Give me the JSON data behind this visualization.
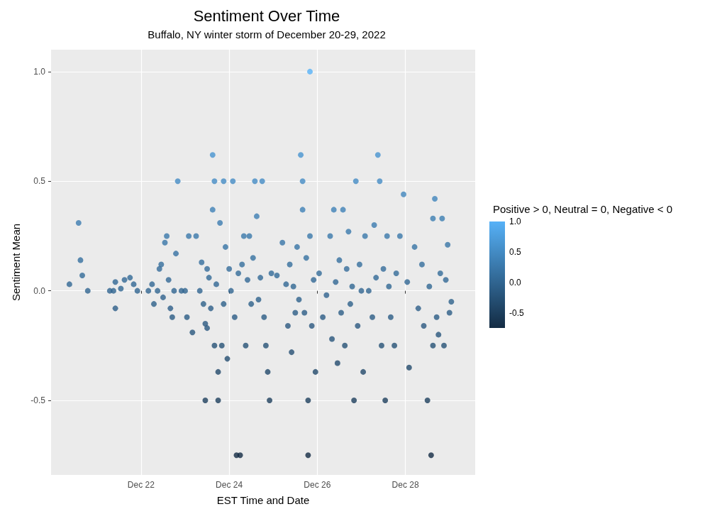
{
  "chart_data": {
    "type": "scatter",
    "title": "Sentiment Over Time",
    "subtitle": "Buffalo, NY winter storm of December 20-29, 2022",
    "xlabel": "EST Time and Date",
    "ylabel": "Sentiment Mean",
    "clabel": "Positive > 0, Neutral = 0, Negative < 0",
    "xlim": [
      "2022-12-19T23:00",
      "2022-12-29T14:00"
    ],
    "xticks": [
      {
        "value": "2022-12-22",
        "label": "Dec 22"
      },
      {
        "value": "2022-12-24",
        "label": "Dec 24"
      },
      {
        "value": "2022-12-26",
        "label": "Dec 26"
      },
      {
        "value": "2022-12-28",
        "label": "Dec 28"
      }
    ],
    "ylim": [
      -0.84,
      1.1
    ],
    "yticks": [
      {
        "value": -0.5,
        "label": "-0.5"
      },
      {
        "value": 0,
        "label": "0.0"
      },
      {
        "value": 0.5,
        "label": "0.5"
      },
      {
        "value": 1,
        "label": "1.0"
      }
    ],
    "clim": [
      -0.75,
      1
    ],
    "cticks": [
      {
        "value": -0.5,
        "label": "-0.5"
      },
      {
        "value": 0,
        "label": "0.0"
      },
      {
        "value": 0.5,
        "label": "0.5"
      },
      {
        "value": 1,
        "label": "1.0"
      }
    ],
    "grid": true,
    "marker": "circle",
    "x": [
      "2022-12-20T09:00",
      "2022-12-20T14:00",
      "2022-12-20T15:00",
      "2022-12-20T16:00",
      "2022-12-20T19:00",
      "2022-12-21T07:00",
      "2022-12-21T09:00",
      "2022-12-21T10:00",
      "2022-12-21T10:00",
      "2022-12-21T13:00",
      "2022-12-21T15:00",
      "2022-12-21T18:00",
      "2022-12-21T20:00",
      "2022-12-21T22:00",
      "2022-12-22T04:00",
      "2022-12-22T06:00",
      "2022-12-22T07:00",
      "2022-12-22T09:00",
      "2022-12-22T10:00",
      "2022-12-22T11:00",
      "2022-12-22T12:00",
      "2022-12-22T13:00",
      "2022-12-22T14:00",
      "2022-12-22T15:00",
      "2022-12-22T16:00",
      "2022-12-22T17:00",
      "2022-12-22T18:00",
      "2022-12-22T19:00",
      "2022-12-22T20:00",
      "2022-12-22T22:00",
      "2022-12-23T00:00",
      "2022-12-23T01:00",
      "2022-12-23T02:00",
      "2022-12-23T04:00",
      "2022-12-23T06:00",
      "2022-12-23T08:00",
      "2022-12-23T09:00",
      "2022-12-23T10:00",
      "2022-12-23T11:00",
      "2022-12-23T11:00",
      "2022-12-23T12:00",
      "2022-12-23T12:00",
      "2022-12-23T13:00",
      "2022-12-23T14:00",
      "2022-12-23T15:00",
      "2022-12-23T15:00",
      "2022-12-23T16:00",
      "2022-12-23T16:00",
      "2022-12-23T17:00",
      "2022-12-23T18:00",
      "2022-12-23T18:00",
      "2022-12-23T19:00",
      "2022-12-23T20:00",
      "2022-12-23T21:00",
      "2022-12-23T21:00",
      "2022-12-23T22:00",
      "2022-12-23T23:00",
      "2022-12-24T00:00",
      "2022-12-24T01:00",
      "2022-12-24T02:00",
      "2022-12-24T03:00",
      "2022-12-24T04:00",
      "2022-12-24T05:00",
      "2022-12-24T06:00",
      "2022-12-24T07:00",
      "2022-12-24T08:00",
      "2022-12-24T09:00",
      "2022-12-24T10:00",
      "2022-12-24T11:00",
      "2022-12-24T12:00",
      "2022-12-24T13:00",
      "2022-12-24T14:00",
      "2022-12-24T15:00",
      "2022-12-24T16:00",
      "2022-12-24T17:00",
      "2022-12-24T18:00",
      "2022-12-24T19:00",
      "2022-12-24T20:00",
      "2022-12-24T21:00",
      "2022-12-24T22:00",
      "2022-12-24T23:00",
      "2022-12-25T02:00",
      "2022-12-25T05:00",
      "2022-12-25T07:00",
      "2022-12-25T08:00",
      "2022-12-25T09:00",
      "2022-12-25T10:00",
      "2022-12-25T11:00",
      "2022-12-25T12:00",
      "2022-12-25T13:00",
      "2022-12-25T14:00",
      "2022-12-25T15:00",
      "2022-12-25T16:00",
      "2022-12-25T16:00",
      "2022-12-25T17:00",
      "2022-12-25T18:00",
      "2022-12-25T19:00",
      "2022-12-25T19:00",
      "2022-12-25T20:00",
      "2022-12-25T20:00",
      "2022-12-25T21:00",
      "2022-12-25T22:00",
      "2022-12-25T23:00",
      "2022-12-26T01:00",
      "2022-12-26T03:00",
      "2022-12-26T05:00",
      "2022-12-26T07:00",
      "2022-12-26T08:00",
      "2022-12-26T09:00",
      "2022-12-26T10:00",
      "2022-12-26T11:00",
      "2022-12-26T12:00",
      "2022-12-26T13:00",
      "2022-12-26T14:00",
      "2022-12-26T15:00",
      "2022-12-26T16:00",
      "2022-12-26T17:00",
      "2022-12-26T18:00",
      "2022-12-26T19:00",
      "2022-12-26T20:00",
      "2022-12-26T21:00",
      "2022-12-26T22:00",
      "2022-12-26T23:00",
      "2022-12-27T00:00",
      "2022-12-27T01:00",
      "2022-12-27T02:00",
      "2022-12-27T04:00",
      "2022-12-27T06:00",
      "2022-12-27T07:00",
      "2022-12-27T08:00",
      "2022-12-27T09:00",
      "2022-12-27T10:00",
      "2022-12-27T11:00",
      "2022-12-27T12:00",
      "2022-12-27T13:00",
      "2022-12-27T14:00",
      "2022-12-27T15:00",
      "2022-12-27T16:00",
      "2022-12-27T18:00",
      "2022-12-27T19:00",
      "2022-12-27T21:00",
      "2022-12-27T23:00",
      "2022-12-28T01:00",
      "2022-12-28T02:00",
      "2022-12-28T05:00",
      "2022-12-28T07:00",
      "2022-12-28T09:00",
      "2022-12-28T10:00",
      "2022-12-28T12:00",
      "2022-12-28T14:00",
      "2022-12-28T13:00",
      "2022-12-28T15:00",
      "2022-12-28T15:00",
      "2022-12-28T16:00",
      "2022-12-28T17:00",
      "2022-12-28T18:00",
      "2022-12-28T19:00",
      "2022-12-28T20:00",
      "2022-12-28T21:00",
      "2022-12-28T22:00",
      "2022-12-28T23:00",
      "2022-12-29T00:00",
      "2022-12-29T01:00"
    ],
    "values": [
      0.03,
      0.31,
      0.14,
      0.07,
      0,
      0,
      0,
      -0.08,
      0.04,
      0.01,
      0.05,
      0.06,
      0.03,
      0,
      0,
      0.03,
      -0.06,
      0,
      0.1,
      0.12,
      -0.03,
      0.22,
      0.25,
      0.05,
      -0.08,
      -0.12,
      0,
      0.17,
      0.5,
      0,
      0,
      -0.12,
      0.25,
      -0.19,
      0.25,
      0,
      0.13,
      -0.06,
      -0.15,
      -0.5,
      0.1,
      -0.17,
      0.06,
      -0.08,
      0.62,
      0.37,
      0.5,
      -0.25,
      0.03,
      -0.5,
      -0.37,
      0.31,
      -0.25,
      0.5,
      -0.06,
      0.2,
      -0.31,
      0.1,
      0,
      0.5,
      -0.12,
      -0.75,
      0.08,
      -0.75,
      0.12,
      0.25,
      -0.25,
      0.05,
      0.25,
      -0.06,
      0.15,
      0.5,
      0.34,
      -0.04,
      0.06,
      0.5,
      -0.12,
      -0.25,
      -0.37,
      -0.5,
      0.08,
      0.07,
      0.22,
      0.03,
      -0.16,
      0.12,
      -0.28,
      0.02,
      -0.1,
      0.2,
      -0.04,
      0.62,
      0.5,
      0.37,
      -0.1,
      0.15,
      -0.75,
      -0.5,
      1,
      0.25,
      -0.16,
      0.05,
      -0.37,
      0.08,
      -0.12,
      -0.02,
      0.25,
      -0.22,
      0.37,
      0.04,
      -0.33,
      0.14,
      -0.1,
      0.37,
      -0.25,
      0.1,
      0.27,
      -0.06,
      0.02,
      -0.5,
      0.5,
      -0.16,
      0.12,
      0,
      -0.37,
      0.25,
      0,
      -0.12,
      0.3,
      0.06,
      0.62,
      0.5,
      -0.25,
      0.1,
      -0.5,
      0.25,
      0.02,
      -0.12,
      -0.25,
      0.08,
      0.25,
      0.44,
      0.04,
      -0.35,
      0.2,
      -0.08,
      0.12,
      -0.16,
      -0.5,
      -0.75,
      0.02,
      -0.25,
      0.33,
      0.42,
      -0.12,
      -0.2,
      0.08,
      0.33,
      -0.25,
      0.05,
      0.21,
      -0.1,
      -0.05
    ],
    "cvalues": [
      0.03,
      0.31,
      0.14,
      0.07,
      0,
      0,
      0,
      -0.08,
      0.04,
      0.01,
      0.05,
      0.06,
      0.03,
      0,
      0,
      0.03,
      -0.06,
      0,
      0.1,
      0.12,
      -0.03,
      0.22,
      0.25,
      0.05,
      -0.08,
      -0.12,
      0,
      0.17,
      0.5,
      0,
      0,
      -0.12,
      0.25,
      -0.19,
      0.25,
      0,
      0.13,
      -0.06,
      -0.15,
      -0.5,
      0.1,
      -0.17,
      0.06,
      -0.08,
      0.62,
      0.37,
      0.5,
      -0.25,
      0.03,
      -0.5,
      -0.37,
      0.31,
      -0.25,
      0.5,
      -0.06,
      0.2,
      -0.31,
      0.1,
      0,
      0.5,
      -0.12,
      -0.75,
      0.08,
      -0.75,
      0.12,
      0.25,
      -0.25,
      0.05,
      0.25,
      -0.06,
      0.15,
      0.5,
      0.34,
      -0.04,
      0.06,
      0.5,
      -0.12,
      -0.25,
      -0.37,
      -0.5,
      0.08,
      0.07,
      0.22,
      0.03,
      -0.16,
      0.12,
      -0.28,
      0.02,
      -0.1,
      0.2,
      -0.04,
      0.62,
      0.5,
      0.37,
      -0.1,
      0.15,
      -0.75,
      -0.5,
      1,
      0.25,
      -0.16,
      0.05,
      -0.37,
      0.08,
      -0.12,
      -0.02,
      0.25,
      -0.22,
      0.37,
      0.04,
      -0.33,
      0.14,
      -0.1,
      0.37,
      -0.25,
      0.1,
      0.27,
      -0.06,
      0.02,
      -0.5,
      0.5,
      -0.16,
      0.12,
      0,
      -0.37,
      0.25,
      0,
      -0.12,
      0.3,
      0.06,
      0.62,
      0.5,
      -0.25,
      0.1,
      -0.5,
      0.25,
      0.02,
      -0.12,
      -0.25,
      0.08,
      0.25,
      0.44,
      0.04,
      -0.35,
      0.2,
      -0.08,
      0.12,
      -0.16,
      -0.5,
      -0.75,
      0.02,
      -0.25,
      0.33,
      0.42,
      -0.12,
      -0.2,
      0.08,
      0.33,
      -0.25,
      0.05,
      0.21,
      -0.1,
      -0.05
    ]
  }
}
